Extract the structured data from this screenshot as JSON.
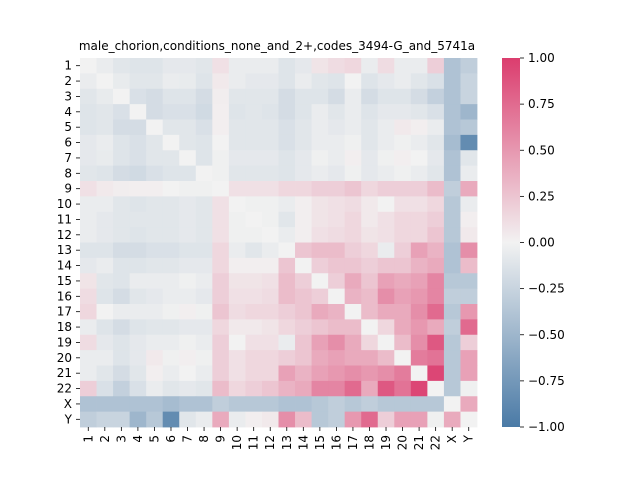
{
  "chart_data": {
    "type": "heatmap",
    "title": "male_chorion,conditions_none_and_2+,codes_3494-G_and_5741a",
    "xlabel": "",
    "ylabel": "",
    "labels": [
      "1",
      "2",
      "3",
      "4",
      "5",
      "6",
      "7",
      "8",
      "9",
      "10",
      "11",
      "12",
      "13",
      "14",
      "15",
      "16",
      "17",
      "18",
      "19",
      "20",
      "21",
      "22",
      "X",
      "Y"
    ],
    "vmin": -1.0,
    "vmax": 1.0,
    "colorbar": {
      "ticks": [
        1.0,
        0.75,
        0.5,
        0.25,
        0.0,
        -0.25,
        -0.5,
        -0.75,
        -1.0
      ],
      "tick_labels": [
        "1.00",
        "0.75",
        "0.50",
        "0.25",
        "0.00",
        "−0.25",
        "−0.50",
        "−0.75",
        "−1.00"
      ],
      "colors": {
        "low": "#4a7aa6",
        "mid": "#f2f2f2",
        "high": "#db3d6e"
      }
    },
    "matrix": [
      [
        0.0,
        -0.05,
        -0.1,
        -0.12,
        -0.12,
        -0.08,
        -0.08,
        -0.1,
        0.1,
        -0.05,
        -0.05,
        -0.05,
        -0.12,
        -0.08,
        0.08,
        0.12,
        0.15,
        -0.05,
        0.12,
        -0.05,
        -0.05,
        0.2,
        -0.4,
        -0.3
      ],
      [
        -0.05,
        0.0,
        -0.06,
        -0.1,
        -0.1,
        -0.05,
        -0.06,
        -0.12,
        0.05,
        -0.05,
        -0.08,
        -0.08,
        -0.12,
        -0.05,
        -0.1,
        -0.12,
        0.0,
        -0.12,
        -0.08,
        -0.05,
        -0.1,
        -0.15,
        -0.4,
        -0.25
      ],
      [
        -0.1,
        -0.06,
        0.0,
        -0.15,
        -0.18,
        -0.12,
        -0.12,
        -0.18,
        0.03,
        -0.1,
        -0.1,
        -0.1,
        -0.18,
        -0.12,
        -0.12,
        -0.18,
        -0.05,
        -0.18,
        -0.12,
        -0.12,
        -0.18,
        -0.28,
        -0.4,
        -0.25
      ],
      [
        -0.12,
        -0.1,
        -0.15,
        0.0,
        -0.18,
        -0.15,
        -0.15,
        -0.2,
        0.02,
        -0.12,
        -0.1,
        -0.12,
        -0.18,
        -0.12,
        -0.05,
        -0.1,
        -0.05,
        -0.12,
        -0.08,
        -0.08,
        -0.1,
        -0.15,
        -0.4,
        -0.5
      ],
      [
        -0.12,
        -0.1,
        -0.18,
        -0.18,
        0.0,
        -0.1,
        -0.1,
        -0.15,
        0.02,
        -0.1,
        -0.1,
        -0.1,
        -0.15,
        -0.1,
        -0.05,
        -0.08,
        -0.05,
        -0.1,
        -0.05,
        0.05,
        0.02,
        -0.05,
        -0.4,
        -0.35
      ],
      [
        -0.08,
        -0.05,
        -0.12,
        -0.15,
        -0.1,
        0.0,
        -0.1,
        -0.12,
        0.0,
        -0.1,
        -0.1,
        -0.1,
        -0.15,
        -0.1,
        -0.05,
        -0.05,
        -0.02,
        -0.1,
        -0.05,
        -0.02,
        -0.05,
        -0.1,
        -0.45,
        -0.85
      ],
      [
        -0.08,
        -0.06,
        -0.12,
        -0.15,
        -0.1,
        -0.1,
        0.0,
        -0.12,
        -0.02,
        -0.08,
        -0.08,
        -0.08,
        -0.12,
        -0.08,
        -0.02,
        -0.05,
        0.02,
        -0.08,
        -0.02,
        0.02,
        0.0,
        -0.08,
        -0.4,
        -0.1
      ],
      [
        -0.1,
        -0.12,
        -0.18,
        -0.2,
        -0.15,
        -0.12,
        -0.12,
        0.0,
        -0.02,
        -0.1,
        -0.1,
        -0.1,
        -0.12,
        -0.08,
        -0.05,
        -0.08,
        -0.02,
        -0.08,
        -0.05,
        -0.02,
        -0.05,
        -0.1,
        -0.4,
        -0.05
      ],
      [
        0.1,
        0.05,
        0.03,
        0.02,
        0.02,
        0.0,
        -0.02,
        -0.02,
        0.0,
        0.1,
        0.1,
        0.1,
        0.15,
        0.15,
        0.2,
        0.2,
        0.25,
        0.15,
        0.2,
        0.2,
        0.2,
        0.3,
        -0.3,
        0.4
      ],
      [
        -0.05,
        -0.05,
        -0.1,
        -0.12,
        -0.1,
        -0.1,
        -0.08,
        -0.1,
        0.1,
        0.0,
        -0.02,
        -0.02,
        -0.05,
        0.02,
        0.08,
        0.1,
        0.12,
        0.05,
        0.0,
        0.1,
        0.1,
        0.15,
        -0.35,
        -0.05
      ],
      [
        -0.05,
        -0.08,
        -0.1,
        -0.1,
        -0.1,
        -0.1,
        -0.08,
        -0.1,
        0.1,
        -0.02,
        0.0,
        -0.02,
        -0.1,
        0.02,
        0.08,
        0.1,
        0.15,
        0.05,
        0.1,
        0.15,
        0.15,
        0.2,
        -0.35,
        0.02
      ],
      [
        -0.05,
        -0.08,
        -0.1,
        -0.12,
        -0.1,
        -0.1,
        -0.08,
        -0.1,
        0.1,
        -0.02,
        -0.02,
        0.0,
        -0.05,
        0.02,
        0.1,
        0.12,
        0.15,
        0.08,
        0.1,
        0.15,
        0.15,
        0.25,
        -0.35,
        0.05
      ],
      [
        -0.12,
        -0.12,
        -0.18,
        -0.18,
        -0.15,
        -0.15,
        -0.12,
        -0.12,
        0.15,
        -0.05,
        -0.1,
        -0.05,
        0.0,
        0.25,
        0.3,
        0.3,
        0.2,
        0.15,
        -0.05,
        0.2,
        0.45,
        0.35,
        -0.4,
        0.55
      ],
      [
        -0.08,
        -0.05,
        -0.12,
        -0.12,
        -0.1,
        -0.1,
        -0.08,
        -0.08,
        0.15,
        0.02,
        0.02,
        0.02,
        0.25,
        0.0,
        0.2,
        0.25,
        0.25,
        0.2,
        0.25,
        0.25,
        0.35,
        0.4,
        -0.4,
        0.3
      ],
      [
        0.08,
        -0.1,
        -0.12,
        -0.05,
        -0.05,
        -0.05,
        -0.02,
        -0.05,
        0.2,
        0.08,
        0.08,
        0.1,
        0.3,
        0.2,
        0.0,
        0.2,
        0.4,
        0.25,
        0.45,
        0.4,
        0.45,
        0.6,
        -0.35,
        -0.35
      ],
      [
        0.12,
        -0.12,
        -0.18,
        -0.1,
        -0.08,
        -0.05,
        -0.05,
        -0.08,
        0.2,
        0.1,
        0.1,
        0.12,
        0.3,
        0.25,
        0.2,
        0.0,
        0.35,
        0.3,
        0.55,
        0.45,
        0.5,
        0.6,
        -0.3,
        -0.3
      ],
      [
        0.15,
        0.0,
        -0.05,
        -0.05,
        -0.05,
        -0.02,
        0.02,
        -0.02,
        0.25,
        0.12,
        0.15,
        0.15,
        0.2,
        0.25,
        0.4,
        0.35,
        0.0,
        0.3,
        0.4,
        0.4,
        0.55,
        0.75,
        -0.35,
        0.5
      ],
      [
        -0.05,
        -0.12,
        -0.18,
        -0.12,
        -0.1,
        -0.1,
        -0.08,
        -0.08,
        0.15,
        0.05,
        0.05,
        0.08,
        0.15,
        0.2,
        0.25,
        0.3,
        0.3,
        0.0,
        0.15,
        0.4,
        0.5,
        0.4,
        -0.3,
        0.75
      ],
      [
        0.12,
        -0.08,
        -0.12,
        -0.08,
        -0.05,
        -0.05,
        -0.02,
        -0.05,
        0.2,
        0.0,
        0.1,
        0.1,
        -0.05,
        0.25,
        0.45,
        0.55,
        0.4,
        0.15,
        0.0,
        0.3,
        0.55,
        0.85,
        -0.35,
        0.2
      ],
      [
        -0.05,
        -0.05,
        -0.12,
        -0.08,
        0.05,
        -0.02,
        0.02,
        -0.02,
        0.2,
        0.1,
        0.15,
        0.15,
        0.2,
        0.25,
        0.4,
        0.45,
        0.4,
        0.4,
        0.3,
        0.0,
        0.65,
        0.7,
        -0.35,
        0.45
      ],
      [
        -0.05,
        -0.1,
        -0.18,
        -0.1,
        0.02,
        -0.05,
        0.0,
        -0.05,
        0.2,
        0.1,
        0.15,
        0.15,
        0.45,
        0.35,
        0.45,
        0.5,
        0.55,
        0.5,
        0.55,
        0.65,
        0.0,
        0.95,
        -0.35,
        0.45
      ],
      [
        0.2,
        -0.15,
        -0.28,
        -0.15,
        -0.05,
        -0.1,
        -0.08,
        -0.1,
        0.3,
        0.15,
        0.2,
        0.25,
        0.35,
        0.4,
        0.6,
        0.6,
        0.75,
        0.4,
        0.85,
        0.7,
        0.95,
        0.0,
        -0.35,
        -0.02
      ],
      [
        -0.4,
        -0.4,
        -0.4,
        -0.4,
        -0.4,
        -0.45,
        -0.4,
        -0.4,
        -0.3,
        -0.35,
        -0.35,
        -0.35,
        -0.4,
        -0.4,
        -0.35,
        -0.3,
        -0.35,
        -0.3,
        -0.35,
        -0.35,
        -0.35,
        -0.35,
        0.0,
        0.4
      ],
      [
        -0.3,
        -0.25,
        -0.25,
        -0.5,
        -0.35,
        -0.85,
        -0.1,
        -0.05,
        0.4,
        -0.05,
        0.02,
        0.05,
        0.55,
        0.3,
        -0.35,
        -0.3,
        0.5,
        0.75,
        0.2,
        0.45,
        0.45,
        -0.02,
        0.4,
        0.0
      ]
    ]
  }
}
